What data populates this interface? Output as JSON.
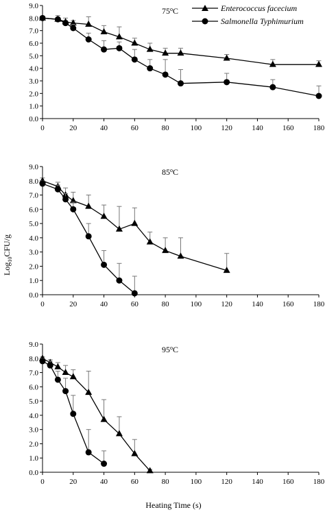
{
  "figure": {
    "ylabel_main": "Log",
    "ylabel_sub": "10",
    "ylabel_rest": "CFU/g",
    "xlabel": "Heating Time (s)"
  },
  "legend": {
    "items": [
      {
        "label": "Enterococcus facecium",
        "marker": "triangle"
      },
      {
        "label": "Salmonella Typhimurium",
        "marker": "circle"
      }
    ]
  },
  "chart_data": [
    {
      "type": "line",
      "panel_label_main": "75",
      "panel_label_sup": "o",
      "panel_label_unit": "C",
      "xlim": [
        0,
        180
      ],
      "ylim": [
        0,
        9
      ],
      "xticks": [
        "0",
        "20",
        "40",
        "60",
        "80",
        "100",
        "120",
        "140",
        "160",
        "180"
      ],
      "yticks": [
        "0.0",
        "1.0",
        "2.0",
        "3.0",
        "4.0",
        "5.0",
        "6.0",
        "7.0",
        "8.0",
        "9.0"
      ],
      "grid": false,
      "legend_position": "top-right",
      "series": [
        {
          "name": "Enterococcus facecium",
          "marker": "triangle",
          "x": [
            0,
            10,
            15,
            20,
            30,
            40,
            50,
            60,
            70,
            80,
            90,
            120,
            150,
            180
          ],
          "y": [
            8.0,
            7.9,
            7.7,
            7.6,
            7.5,
            6.9,
            6.5,
            6.0,
            5.5,
            5.2,
            5.2,
            4.8,
            4.3,
            4.3
          ],
          "error_upper": [
            0.1,
            0.3,
            0.3,
            0.2,
            0.6,
            0.5,
            0.8,
            0.4,
            0.5,
            0.4,
            0.4,
            0.3,
            0.4,
            0.3
          ]
        },
        {
          "name": "Salmonella Typhimurium",
          "marker": "circle",
          "x": [
            0,
            10,
            15,
            20,
            30,
            40,
            50,
            60,
            70,
            80,
            90,
            120,
            150,
            180
          ],
          "y": [
            8.0,
            7.9,
            7.6,
            7.2,
            6.3,
            5.5,
            5.6,
            4.7,
            4.0,
            3.5,
            2.8,
            2.9,
            2.5,
            1.8
          ],
          "error_upper": [
            0.1,
            0.1,
            0.2,
            0.3,
            0.5,
            0.7,
            0.5,
            0.8,
            0.7,
            1.2,
            1.1,
            0.7,
            0.6,
            0.8
          ]
        }
      ]
    },
    {
      "type": "line",
      "panel_label_main": "85",
      "panel_label_sup": "o",
      "panel_label_unit": "C",
      "xlim": [
        0,
        180
      ],
      "ylim": [
        0,
        9
      ],
      "xticks": [
        "0",
        "20",
        "40",
        "60",
        "80",
        "100",
        "120",
        "140",
        "160",
        "180"
      ],
      "yticks": [
        "0.0",
        "1.0",
        "2.0",
        "3.0",
        "4.0",
        "5.0",
        "6.0",
        "7.0",
        "8.0",
        "9.0"
      ],
      "grid": false,
      "series": [
        {
          "name": "Enterococcus facecium",
          "marker": "triangle",
          "x": [
            0,
            10,
            15,
            20,
            30,
            40,
            50,
            60,
            70,
            80,
            90,
            120
          ],
          "y": [
            8.0,
            7.6,
            7.0,
            6.6,
            6.2,
            5.5,
            4.6,
            5.0,
            3.7,
            3.1,
            2.7,
            1.7
          ],
          "error_upper": [
            0.2,
            0.3,
            0.5,
            0.6,
            0.8,
            0.8,
            1.6,
            1.1,
            0.7,
            0.9,
            1.3,
            1.2
          ]
        },
        {
          "name": "Salmonella Typhimurium",
          "marker": "circle",
          "x": [
            0,
            10,
            15,
            20,
            30,
            40,
            50,
            60
          ],
          "y": [
            7.8,
            7.4,
            6.7,
            6.0,
            4.1,
            2.1,
            1.0,
            0.1
          ],
          "error_upper": [
            0.2,
            0.3,
            0.4,
            0.5,
            0.9,
            1.0,
            1.2,
            1.2
          ]
        }
      ]
    },
    {
      "type": "line",
      "panel_label_main": "95",
      "panel_label_sup": "o",
      "panel_label_unit": "C",
      "xlim": [
        0,
        180
      ],
      "ylim": [
        0,
        9
      ],
      "xticks": [
        "0",
        "20",
        "40",
        "60",
        "80",
        "100",
        "120",
        "140",
        "160",
        "180"
      ],
      "yticks": [
        "0.0",
        "1.0",
        "2.0",
        "3.0",
        "4.0",
        "5.0",
        "6.0",
        "7.0",
        "8.0",
        "9.0"
      ],
      "grid": false,
      "series": [
        {
          "name": "Enterococcus facecium",
          "marker": "triangle",
          "x": [
            0,
            5,
            10,
            15,
            20,
            30,
            40,
            50,
            60,
            70
          ],
          "y": [
            8.0,
            7.7,
            7.4,
            7.0,
            6.7,
            5.6,
            3.7,
            2.7,
            1.3,
            0.1
          ],
          "error_upper": [
            0.1,
            0.2,
            0.3,
            0.5,
            0.5,
            1.5,
            1.4,
            1.2,
            1.0,
            0.1
          ]
        },
        {
          "name": "Salmonella Typhimurium",
          "marker": "circle",
          "x": [
            0,
            5,
            10,
            15,
            20,
            30,
            40
          ],
          "y": [
            7.8,
            7.5,
            6.5,
            5.7,
            4.1,
            1.4,
            0.6
          ],
          "error_upper": [
            0.2,
            0.3,
            0.6,
            0.9,
            1.3,
            1.6,
            0.9
          ]
        }
      ]
    }
  ]
}
